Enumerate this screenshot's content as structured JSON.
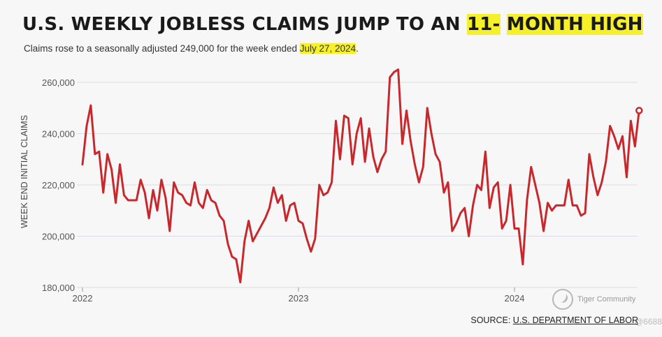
{
  "header": {
    "title_a": "U.S. WEEKLY JOBLESS CLAIMS JUMP TO AN ",
    "title_b": "11-",
    "title_c": " ",
    "title_d": "MONTH HIGH",
    "subtitle_a": "Claims rose to a seasonally adjusted 249,000 for the week ended ",
    "subtitle_b": "July 27, 2024",
    "subtitle_c": "."
  },
  "footer": {
    "source_label": "SOURCE: ",
    "source_link": "U.S. DEPARTMENT OF LABOR"
  },
  "watermark": {
    "text": "Tiger Community",
    "number": "@6688"
  },
  "colors": {
    "line": "#c8282c",
    "highlight": "#f5f02a",
    "grid": "#d9dde3"
  },
  "chart_data": {
    "type": "line",
    "title": "U.S. WEEKLY JOBLESS CLAIMS JUMP TO AN 11- MONTH HIGH",
    "ylabel": "WEEK END INITIAL CLAIMS",
    "xlabel": "",
    "ylim": [
      180000,
      265000
    ],
    "yticks": [
      180000,
      200000,
      220000,
      240000,
      260000
    ],
    "ytick_labels": [
      "180,000",
      "200,000",
      "220,000",
      "240,000",
      "260,000"
    ],
    "xticks": [
      "2022",
      "2023",
      "2024"
    ],
    "grid": true,
    "last_point_marker": true,
    "x_start": "2022-01-01",
    "x_interval": "weekly",
    "series": [
      {
        "values": [
          228000,
          243000,
          251000,
          232000,
          233000,
          217000,
          232000,
          226000,
          213000,
          228000,
          216000,
          214000,
          214000,
          214000,
          222000,
          217000,
          207000,
          218000,
          210000,
          222000,
          215000,
          202000,
          221000,
          217000,
          216000,
          213000,
          212000,
          221000,
          213000,
          211000,
          218000,
          214000,
          213000,
          208000,
          206000,
          197000,
          192000,
          191000,
          182000,
          198000,
          206000,
          198000,
          201000,
          204000,
          207000,
          211000,
          219000,
          213000,
          216000,
          206000,
          212000,
          213000,
          206000,
          205000,
          199000,
          194000,
          199000,
          220000,
          216000,
          217000,
          221000,
          245000,
          230000,
          247000,
          246000,
          228000,
          240000,
          246000,
          229000,
          242000,
          231000,
          225000,
          230000,
          233000,
          262000,
          264000,
          265000,
          236000,
          249000,
          237000,
          228000,
          221000,
          227000,
          250000,
          240000,
          232000,
          229000,
          217000,
          221000,
          202000,
          205000,
          209000,
          211000,
          200000,
          212000,
          220000,
          218000,
          233000,
          211000,
          219000,
          221000,
          203000,
          206000,
          220000,
          203000,
          203000,
          189000,
          214000,
          227000,
          220000,
          213000,
          202000,
          213000,
          210000,
          212000,
          212000,
          212000,
          222000,
          212000,
          212000,
          208000,
          209000,
          232000,
          223000,
          216000,
          221000,
          229000,
          243000,
          239000,
          234000,
          239000,
          223000,
          245000,
          235000,
          249000
        ]
      }
    ]
  }
}
